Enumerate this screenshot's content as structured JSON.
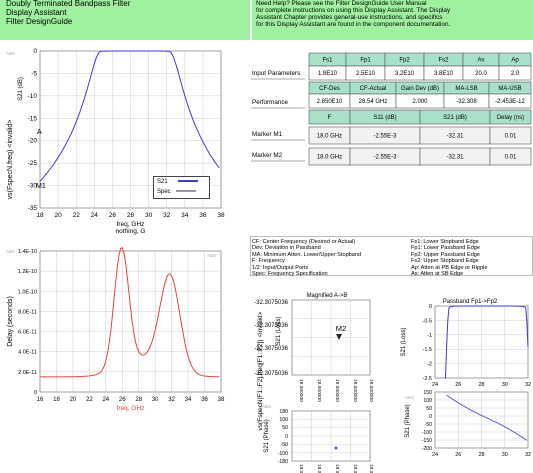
{
  "header_left": [
    "Doubly Terminated Bandpass Filter",
    "Display Assistant",
    "Filter DesignGuide"
  ],
  "header_right": [
    "Need Help? Please see the Filter DesignGuide User Manual",
    "for complete instructions on using this Display Assistant.  The Display",
    "Assistant Chapter provides general-use instructions, and specifics",
    "for this Display Assistant are found in the component documentation."
  ],
  "table1": {
    "row_label": "Input Parameters",
    "headers": [
      "Fs1",
      "Fp1",
      "Fp2",
      "Fs2",
      "As",
      "Ap"
    ],
    "values": [
      "1.8E10",
      "2.5E10",
      "3.2E10",
      "3.8E10",
      "20.0",
      "2.0"
    ]
  },
  "table2": {
    "row_label": "Performance",
    "headers": [
      "CF-Des",
      "CF-Actual",
      "Gain Dev (dB)",
      "MA-LSB",
      "MA-USB"
    ],
    "values": [
      "2.850E10",
      "28.54 GHz",
      "2.000",
      "-32.308",
      "-2.453E-12"
    ]
  },
  "table3": {
    "headers": [
      "F",
      "S11 (dB)",
      "S21 (dB)",
      "Delay (ns)"
    ],
    "rows": [
      {
        "label": "Marker M1",
        "cells": [
          "18.0 GHz",
          "-2.55E-3",
          "-32.31",
          "0.01"
        ]
      },
      {
        "label": "Marker M2",
        "cells": [
          "18.0 GHz",
          "-2.55E-3",
          "-32.31",
          "0.01"
        ]
      }
    ]
  },
  "notes_left": [
    "CF: Center Frequency (Desired or Actual)",
    "Dev: Deviation in Passband",
    "MA: Minimum Atten. Lower/Upper Stopband",
    "F:  Frequency",
    "1/2:  Input/Output Ports",
    "Spec: Frequency Specification"
  ],
  "notes_right": [
    "Fs1: Lower Stopband Edge",
    "Fp1: Lower Passband Edge",
    "Fp2: Upper Passband Edge",
    "Fs2: Upper Stopband Edge",
    "Ap: Atten at PB Edge or Ripple",
    "As: Atten at SB Edge"
  ],
  "plot1": {
    "ylabel": "vs(FspecN,freq) <invalid>",
    "ylabel2": "S21 (dB)",
    "xlabel": "freq, GHz",
    "xlabel2": "nothing, G",
    "abs": "ABS",
    "xticks": [
      "18",
      "20",
      "22",
      "24",
      "26",
      "28",
      "30",
      "32",
      "34",
      "36",
      "38"
    ],
    "yticks": [
      "0",
      "-5",
      "-10",
      "-15",
      "-20",
      "-25",
      "-30",
      "-35"
    ],
    "legend": [
      "S21",
      "Spec"
    ],
    "marker_a": "A",
    "marker_m1": "M1",
    "color": "#3a3ad8"
  },
  "plot2": {
    "ylabel": "Delay (seconds)",
    "xlabel": "freq, GHz",
    "abs": "ABS",
    "xticks": [
      "16",
      "18",
      "20",
      "22",
      "24",
      "26",
      "28",
      "30",
      "32",
      "34",
      "36",
      "38"
    ],
    "yticks": [
      "1.4E-10",
      "1.2E-10",
      "1.0E-10",
      "8.0E-11",
      "6.0E-11",
      "4.0E-11",
      "2.0E-11",
      "0"
    ],
    "color": "#e84040"
  },
  "plot3": {
    "title": "Magnified A->B",
    "ylabel_outer": "vs(FspecN[F1::F2],freq[F1::F2]) <invalid>",
    "ylabel_top": "S21 (Loss)",
    "ylabel_bot": "S21 (Phase)",
    "yticks_top": [
      "-32.3075036",
      "-32.3075036",
      "-32.3075036",
      "-32.3075036"
    ],
    "yticks_bot": [
      "180",
      "100",
      "50",
      "0",
      "-50",
      "-100",
      "-180"
    ],
    "xticks": [
      "18.000000",
      "18.000000",
      "18.000000",
      "18.000000",
      "18.000000"
    ],
    "marker": "M2",
    "abs": "ABS"
  },
  "plot4": {
    "title": "Passband Fp1->Fp2",
    "ylabel_top": "S21 (Loss)",
    "ylabel_bot": "S21 (Phase)",
    "yticks_top": [
      "0",
      "-0.5",
      "-1",
      "-1.5",
      "-2",
      "-2.5"
    ],
    "yticks_bot": [
      "150",
      "100",
      "50",
      "0",
      "-50",
      "-100",
      "-150",
      "-200"
    ],
    "xticks": [
      "24",
      "26",
      "28",
      "30",
      "32"
    ],
    "abs": "ABS"
  }
}
